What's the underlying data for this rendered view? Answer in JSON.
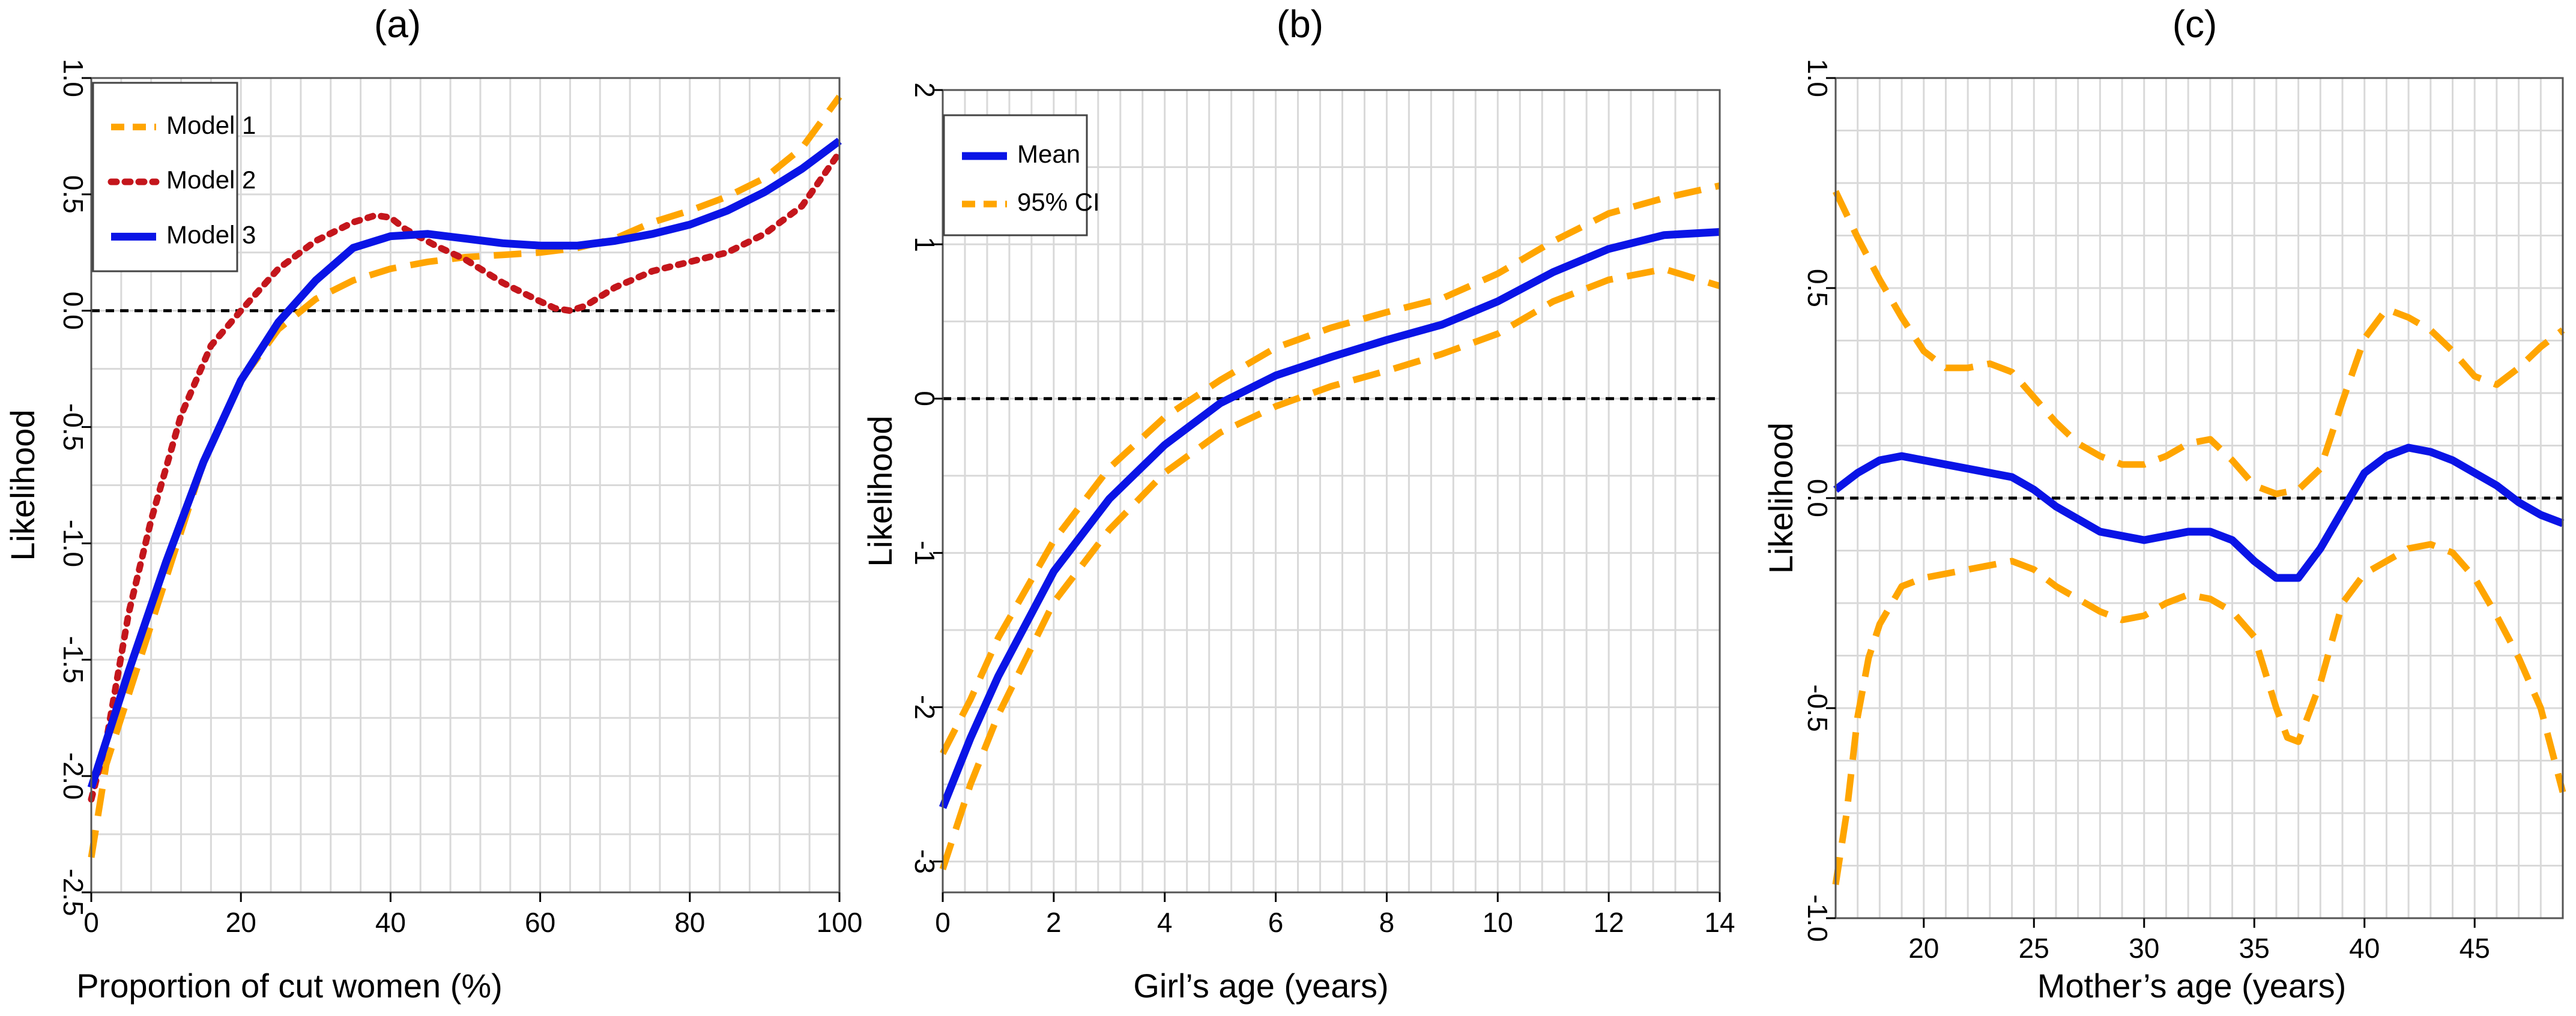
{
  "figure": {
    "background": "#ffffff"
  },
  "colors": {
    "blue": "#0a14e6",
    "orange": "#ffa500",
    "red": "#c4161c",
    "grid": "#d9d9d9",
    "zero": "#000000"
  },
  "chart_data": [
    {
      "type": "line",
      "panel_label": "(a)",
      "xlabel": "Proportion of cut women (%)",
      "ylabel": "Likelihood",
      "xlim": [
        0,
        100
      ],
      "ylim": [
        -2.5,
        1.0
      ],
      "xticks": [
        0,
        20,
        40,
        60,
        80,
        100
      ],
      "xtick_labels": [
        "0",
        "20",
        "40",
        "60",
        "80",
        "100"
      ],
      "yticks": [
        -2.5,
        -2.0,
        -1.5,
        -1.0,
        -0.5,
        0.0,
        0.5,
        1.0
      ],
      "ytick_labels": [
        "-2.5",
        "-2.0",
        "-1.5",
        "-1.0",
        "-0.5",
        "0.0",
        "0.5",
        "1.0"
      ],
      "grid": true,
      "reference_line_y": 0,
      "legend": [
        "Model 1",
        "Model 2",
        "Model 3"
      ],
      "legend_position": "top-left",
      "series": [
        {
          "name": "Model 1",
          "style": "dashed",
          "color": "#ffa500",
          "x": [
            0,
            2,
            5,
            10,
            15,
            20,
            25,
            30,
            35,
            40,
            45,
            50,
            55,
            60,
            65,
            70,
            75,
            80,
            85,
            90,
            95,
            100
          ],
          "y": [
            -2.35,
            -1.95,
            -1.65,
            -1.15,
            -0.65,
            -0.3,
            -0.08,
            0.05,
            0.13,
            0.18,
            0.21,
            0.23,
            0.24,
            0.25,
            0.27,
            0.31,
            0.38,
            0.43,
            0.49,
            0.57,
            0.7,
            0.92
          ]
        },
        {
          "name": "Model 2",
          "style": "dotted",
          "color": "#c4161c",
          "x": [
            0,
            2,
            5,
            8,
            12,
            16,
            20,
            25,
            30,
            35,
            38,
            40,
            42,
            46,
            50,
            55,
            60,
            62,
            64,
            66,
            70,
            75,
            80,
            85,
            90,
            95,
            100
          ],
          "y": [
            -2.1,
            -1.85,
            -1.3,
            -0.9,
            -0.45,
            -0.15,
            0.0,
            0.18,
            0.3,
            0.38,
            0.41,
            0.4,
            0.35,
            0.28,
            0.22,
            0.12,
            0.04,
            0.01,
            0.0,
            0.02,
            0.1,
            0.17,
            0.21,
            0.25,
            0.33,
            0.45,
            0.68
          ]
        },
        {
          "name": "Model 3",
          "style": "solid",
          "color": "#0a14e6",
          "x": [
            0,
            2,
            5,
            10,
            15,
            20,
            25,
            30,
            35,
            40,
            45,
            50,
            55,
            60,
            65,
            70,
            75,
            80,
            85,
            90,
            95,
            100
          ],
          "y": [
            -2.05,
            -1.85,
            -1.55,
            -1.08,
            -0.65,
            -0.3,
            -0.05,
            0.13,
            0.27,
            0.32,
            0.33,
            0.31,
            0.29,
            0.28,
            0.28,
            0.3,
            0.33,
            0.37,
            0.43,
            0.51,
            0.61,
            0.73
          ]
        }
      ]
    },
    {
      "type": "line",
      "panel_label": "(b)",
      "xlabel": "Girl’s age (years)",
      "ylabel": "Likelihood",
      "xlim": [
        0,
        14
      ],
      "ylim": [
        -3.2,
        2.0
      ],
      "xticks": [
        0,
        2,
        4,
        6,
        8,
        10,
        12,
        14
      ],
      "xtick_labels": [
        "0",
        "2",
        "4",
        "6",
        "8",
        "10",
        "12",
        "14"
      ],
      "yticks": [
        -3,
        -2,
        -1,
        0,
        1,
        2
      ],
      "ytick_labels": [
        "-3",
        "-2",
        "-1",
        "0",
        "1",
        "2"
      ],
      "grid": true,
      "reference_line_y": 0,
      "legend": [
        "Mean",
        "95% CI"
      ],
      "legend_position": "top-left",
      "series": [
        {
          "name": "Mean",
          "style": "solid",
          "color": "#0a14e6",
          "x": [
            0,
            0.5,
            1,
            2,
            3,
            4,
            5,
            6,
            7,
            8,
            9,
            10,
            11,
            12,
            13,
            14
          ],
          "y": [
            -2.65,
            -2.2,
            -1.8,
            -1.12,
            -0.65,
            -0.3,
            -0.03,
            0.15,
            0.27,
            0.38,
            0.48,
            0.63,
            0.82,
            0.97,
            1.06,
            1.08
          ]
        },
        {
          "name": "95% CI upper",
          "style": "dashed",
          "color": "#ffa500",
          "x": [
            0,
            0.5,
            1,
            2,
            3,
            4,
            5,
            6,
            7,
            8,
            9,
            10,
            11,
            12,
            13,
            14
          ],
          "y": [
            -2.3,
            -1.95,
            -1.55,
            -0.92,
            -0.45,
            -0.12,
            0.12,
            0.33,
            0.46,
            0.56,
            0.65,
            0.81,
            1.02,
            1.2,
            1.3,
            1.38
          ]
        },
        {
          "name": "95% CI lower",
          "style": "dashed",
          "color": "#ffa500",
          "x": [
            0,
            0.5,
            1,
            2,
            3,
            4,
            5,
            6,
            7,
            8,
            9,
            10,
            11,
            12,
            13,
            14
          ],
          "y": [
            -3.05,
            -2.5,
            -2.05,
            -1.32,
            -0.85,
            -0.48,
            -0.22,
            -0.05,
            0.08,
            0.18,
            0.29,
            0.42,
            0.63,
            0.77,
            0.84,
            0.73
          ]
        }
      ]
    },
    {
      "type": "line",
      "panel_label": "(c)",
      "xlabel": "Mother’s age (years)",
      "ylabel": "Likelihood",
      "xlim": [
        16,
        49
      ],
      "ylim": [
        -1.0,
        1.0
      ],
      "xticks": [
        20,
        25,
        30,
        35,
        40,
        45
      ],
      "xtick_labels": [
        "20",
        "25",
        "30",
        "35",
        "40",
        "45"
      ],
      "yticks": [
        -1.0,
        -0.5,
        0.0,
        0.5,
        1.0
      ],
      "ytick_labels": [
        "-1.0",
        "-0.5",
        "0.0",
        "0.5",
        "1.0"
      ],
      "grid": true,
      "reference_line_y": 0,
      "series": [
        {
          "name": "Mean",
          "style": "solid",
          "color": "#0a14e6",
          "x": [
            16,
            17,
            18,
            19,
            20,
            21,
            22,
            23,
            24,
            25,
            26,
            27,
            28,
            29,
            30,
            31,
            32,
            33,
            34,
            35,
            36,
            37,
            38,
            39,
            40,
            41,
            42,
            43,
            44,
            45,
            46,
            47,
            48,
            49
          ],
          "y": [
            0.02,
            0.06,
            0.09,
            0.1,
            0.09,
            0.08,
            0.07,
            0.06,
            0.05,
            0.02,
            -0.02,
            -0.05,
            -0.08,
            -0.09,
            -0.1,
            -0.09,
            -0.08,
            -0.08,
            -0.1,
            -0.15,
            -0.19,
            -0.19,
            -0.12,
            -0.03,
            0.06,
            0.1,
            0.12,
            0.11,
            0.09,
            0.06,
            0.03,
            -0.01,
            -0.04,
            -0.06
          ]
        },
        {
          "name": "95% CI upper",
          "style": "dashed",
          "color": "#ffa500",
          "x": [
            16,
            17,
            18,
            19,
            20,
            21,
            22,
            23,
            24,
            25,
            26,
            27,
            28,
            29,
            30,
            31,
            32,
            33,
            34,
            35,
            36,
            37,
            38,
            39,
            40,
            41,
            42,
            43,
            44,
            45,
            46,
            47,
            48,
            49
          ],
          "y": [
            0.73,
            0.62,
            0.52,
            0.43,
            0.35,
            0.31,
            0.31,
            0.32,
            0.3,
            0.24,
            0.18,
            0.13,
            0.1,
            0.08,
            0.08,
            0.1,
            0.13,
            0.14,
            0.09,
            0.03,
            0.01,
            0.02,
            0.07,
            0.23,
            0.38,
            0.45,
            0.43,
            0.4,
            0.35,
            0.29,
            0.27,
            0.31,
            0.36,
            0.4
          ]
        },
        {
          "name": "95% CI lower",
          "style": "dashed",
          "color": "#ffa500",
          "x": [
            16,
            16.5,
            17,
            17.5,
            18,
            19,
            20,
            21,
            22,
            23,
            24,
            25,
            26,
            27,
            28,
            29,
            30,
            31,
            32,
            33,
            34,
            35,
            36,
            36.5,
            37,
            38,
            39,
            40,
            41,
            42,
            43,
            44,
            45,
            46,
            47,
            48,
            49
          ],
          "y": [
            -0.92,
            -0.75,
            -0.52,
            -0.38,
            -0.3,
            -0.21,
            -0.19,
            -0.18,
            -0.17,
            -0.16,
            -0.15,
            -0.17,
            -0.21,
            -0.24,
            -0.27,
            -0.29,
            -0.28,
            -0.25,
            -0.23,
            -0.24,
            -0.27,
            -0.33,
            -0.5,
            -0.57,
            -0.58,
            -0.44,
            -0.25,
            -0.18,
            -0.15,
            -0.12,
            -0.11,
            -0.13,
            -0.19,
            -0.28,
            -0.38,
            -0.5,
            -0.7
          ]
        }
      ]
    }
  ]
}
